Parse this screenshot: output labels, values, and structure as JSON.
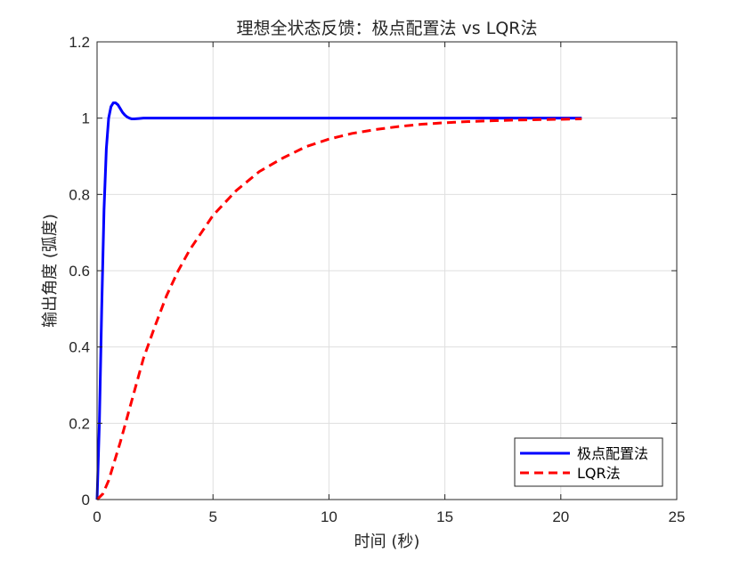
{
  "chart_data": {
    "type": "line",
    "title": "理想全状态反馈：极点配置法 vs LQR法",
    "xlabel": "时间 (秒)",
    "ylabel": "输出角度 (弧度)",
    "xlim": [
      0,
      25
    ],
    "ylim": [
      0,
      1.2
    ],
    "xticks": [
      0,
      5,
      10,
      15,
      20,
      25
    ],
    "yticks": [
      0,
      0.2,
      0.4,
      0.6,
      0.8,
      1,
      1.2
    ],
    "xtick_labels": [
      "0",
      "5",
      "10",
      "15",
      "20",
      "25"
    ],
    "ytick_labels": [
      "0",
      "0.2",
      "0.4",
      "0.6",
      "0.8",
      "1",
      "1.2"
    ],
    "grid": true,
    "legend_position": "bottom-right",
    "series": [
      {
        "name": "极点配置法",
        "color": "#0000ff",
        "style": "solid",
        "x": [
          0,
          0.1,
          0.2,
          0.3,
          0.4,
          0.5,
          0.6,
          0.7,
          0.8,
          0.9,
          1.0,
          1.1,
          1.2,
          1.3,
          1.4,
          1.5,
          1.6,
          1.8,
          2.0,
          2.5,
          3,
          4,
          6,
          8,
          10,
          12,
          14,
          16,
          18,
          20,
          20.9
        ],
        "y": [
          0,
          0.2,
          0.5,
          0.76,
          0.92,
          1.0,
          1.03,
          1.04,
          1.04,
          1.035,
          1.025,
          1.015,
          1.008,
          1.003,
          1.0,
          0.998,
          0.998,
          0.999,
          1.0,
          1.0,
          1.0,
          1.0,
          1.0,
          1.0,
          1.0,
          1.0,
          1.0,
          1.0,
          1.0,
          1.0,
          1.0
        ]
      },
      {
        "name": "LQR法",
        "color": "#ff0000",
        "style": "dashed",
        "x": [
          0,
          0.25,
          0.5,
          1,
          1.5,
          2,
          2.5,
          3,
          3.5,
          4,
          5,
          6,
          7,
          8,
          9,
          10,
          11,
          12,
          13,
          14,
          15,
          16,
          17,
          18,
          19,
          20,
          20.9
        ],
        "y": [
          0,
          0.015,
          0.05,
          0.15,
          0.26,
          0.37,
          0.455,
          0.535,
          0.6,
          0.655,
          0.745,
          0.81,
          0.86,
          0.895,
          0.925,
          0.945,
          0.96,
          0.97,
          0.978,
          0.984,
          0.988,
          0.991,
          0.993,
          0.995,
          0.996,
          0.997,
          0.998
        ]
      }
    ]
  }
}
